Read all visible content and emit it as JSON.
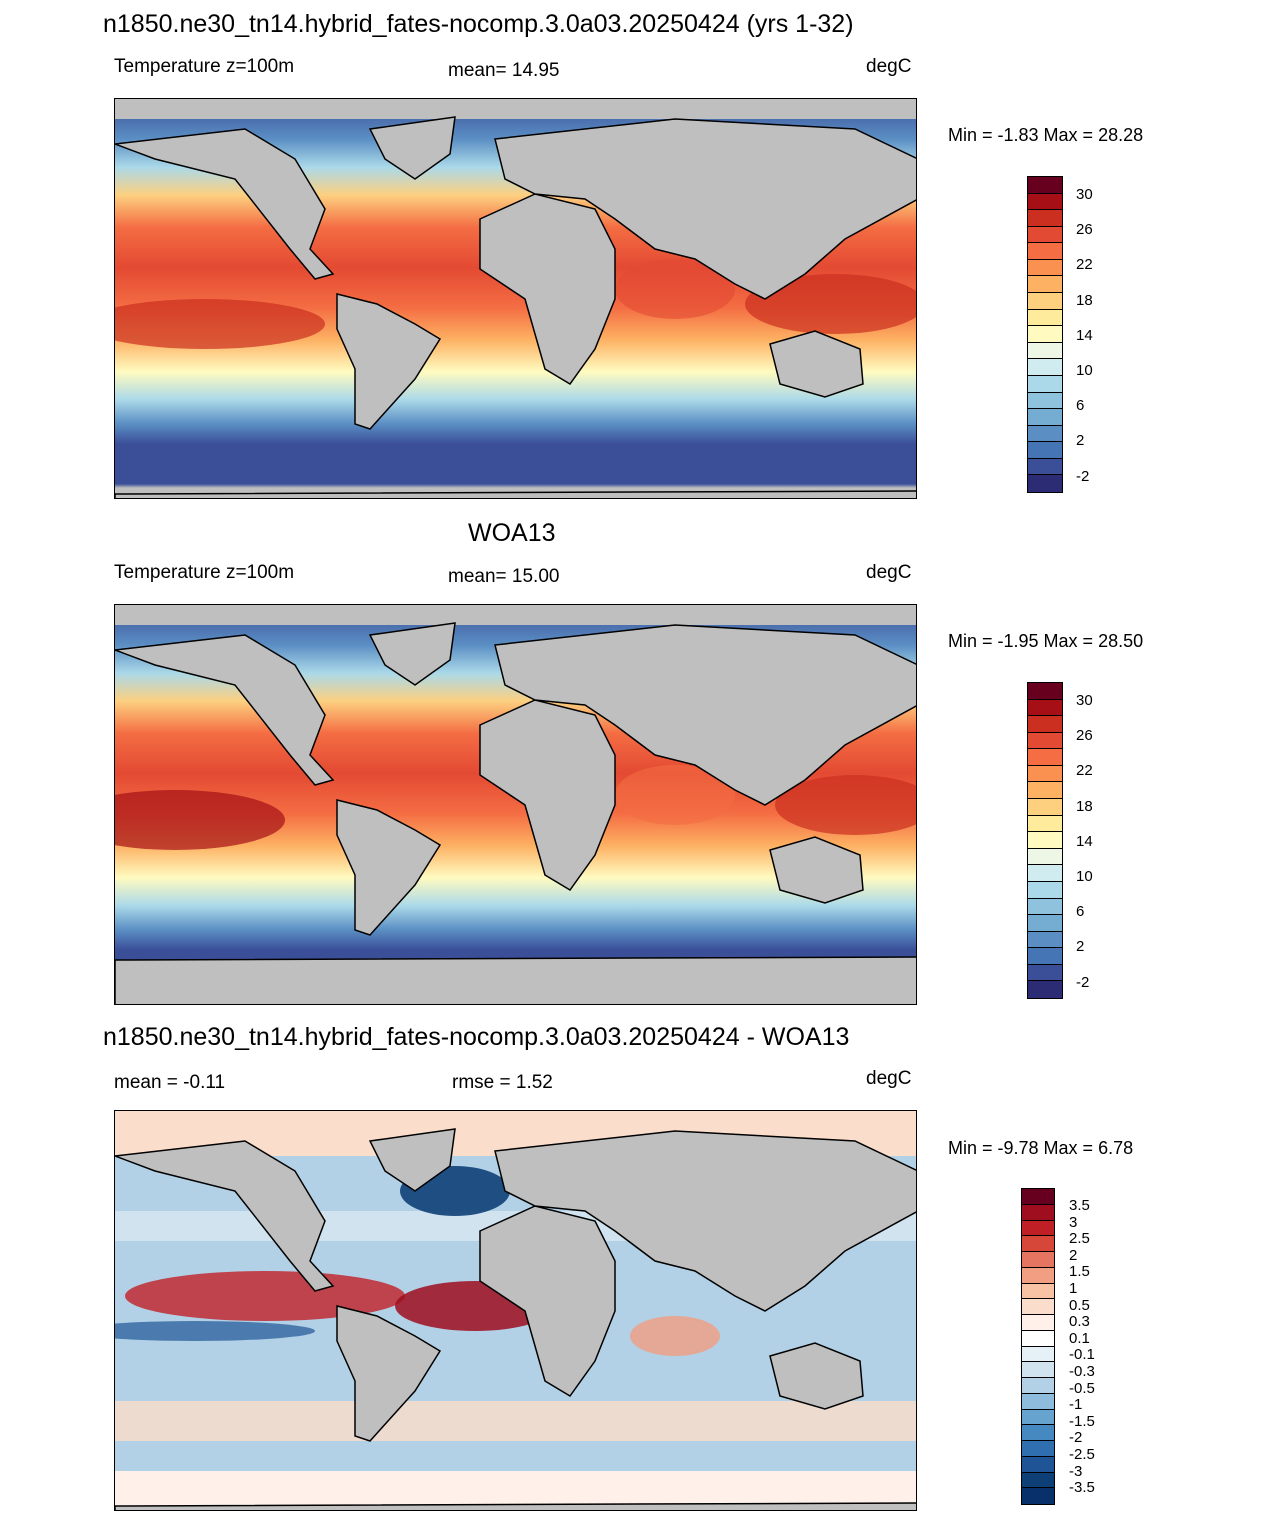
{
  "panels": [
    {
      "title": "n1850.ne30_tn14.hybrid_fates-nocomp.3.0a03.20250424 (yrs 1-32)",
      "left_label": "Temperature z=100m",
      "center_label": "mean=  14.95",
      "units": "degC",
      "minmax": "Min =  -1.83 Max =  28.28",
      "colorbar_labels": [
        "30",
        "26",
        "22",
        "18",
        "14",
        "10",
        "6",
        "2",
        "-2"
      ]
    },
    {
      "title": "WOA13",
      "left_label": "Temperature z=100m",
      "center_label": "mean=  15.00",
      "units": "degC",
      "minmax": "Min =  -1.95 Max =  28.50",
      "colorbar_labels": [
        "30",
        "26",
        "22",
        "18",
        "14",
        "10",
        "6",
        "2",
        "-2"
      ]
    },
    {
      "title": "n1850.ne30_tn14.hybrid_fates-nocomp.3.0a03.20250424 - WOA13",
      "left_label": "mean =  -0.11",
      "center_label": "rmse =   1.52",
      "units": "degC",
      "minmax": "Min =  -9.78 Max =   6.78",
      "colorbar_labels": [
        "3.5",
        "3",
        "2.5",
        "2",
        "1.5",
        "1",
        "0.5",
        "0.3",
        "0.1",
        "-0.1",
        "-0.3",
        "-0.5",
        "-1",
        "-1.5",
        "-2",
        "-2.5",
        "-3",
        "-3.5"
      ]
    }
  ],
  "colors": {
    "temp_scale": [
      "#67001f",
      "#a50f15",
      "#cb2f20",
      "#e34a33",
      "#f46d43",
      "#fa9150",
      "#fdb163",
      "#fdd080",
      "#feeb9c",
      "#fffbc0",
      "#eef7e6",
      "#d1ecf0",
      "#abd9e9",
      "#8fc3dd",
      "#74add1",
      "#5b8fc4",
      "#4575b4",
      "#3b4f99",
      "#2c2c74"
    ],
    "diff_scale": [
      "#67001f",
      "#9e0e1f",
      "#c01f25",
      "#d6473a",
      "#e57560",
      "#f19e82",
      "#f8c2a4",
      "#fbddcb",
      "#fff1ea",
      "#ffffff",
      "#e6f0f7",
      "#d0e3ef",
      "#b2d1e6",
      "#8ebcdc",
      "#67a3cf",
      "#4689c1",
      "#2f6fb0",
      "#1f5596",
      "#0e3f77",
      "#08306b"
    ],
    "land": "#bfbfbf"
  }
}
